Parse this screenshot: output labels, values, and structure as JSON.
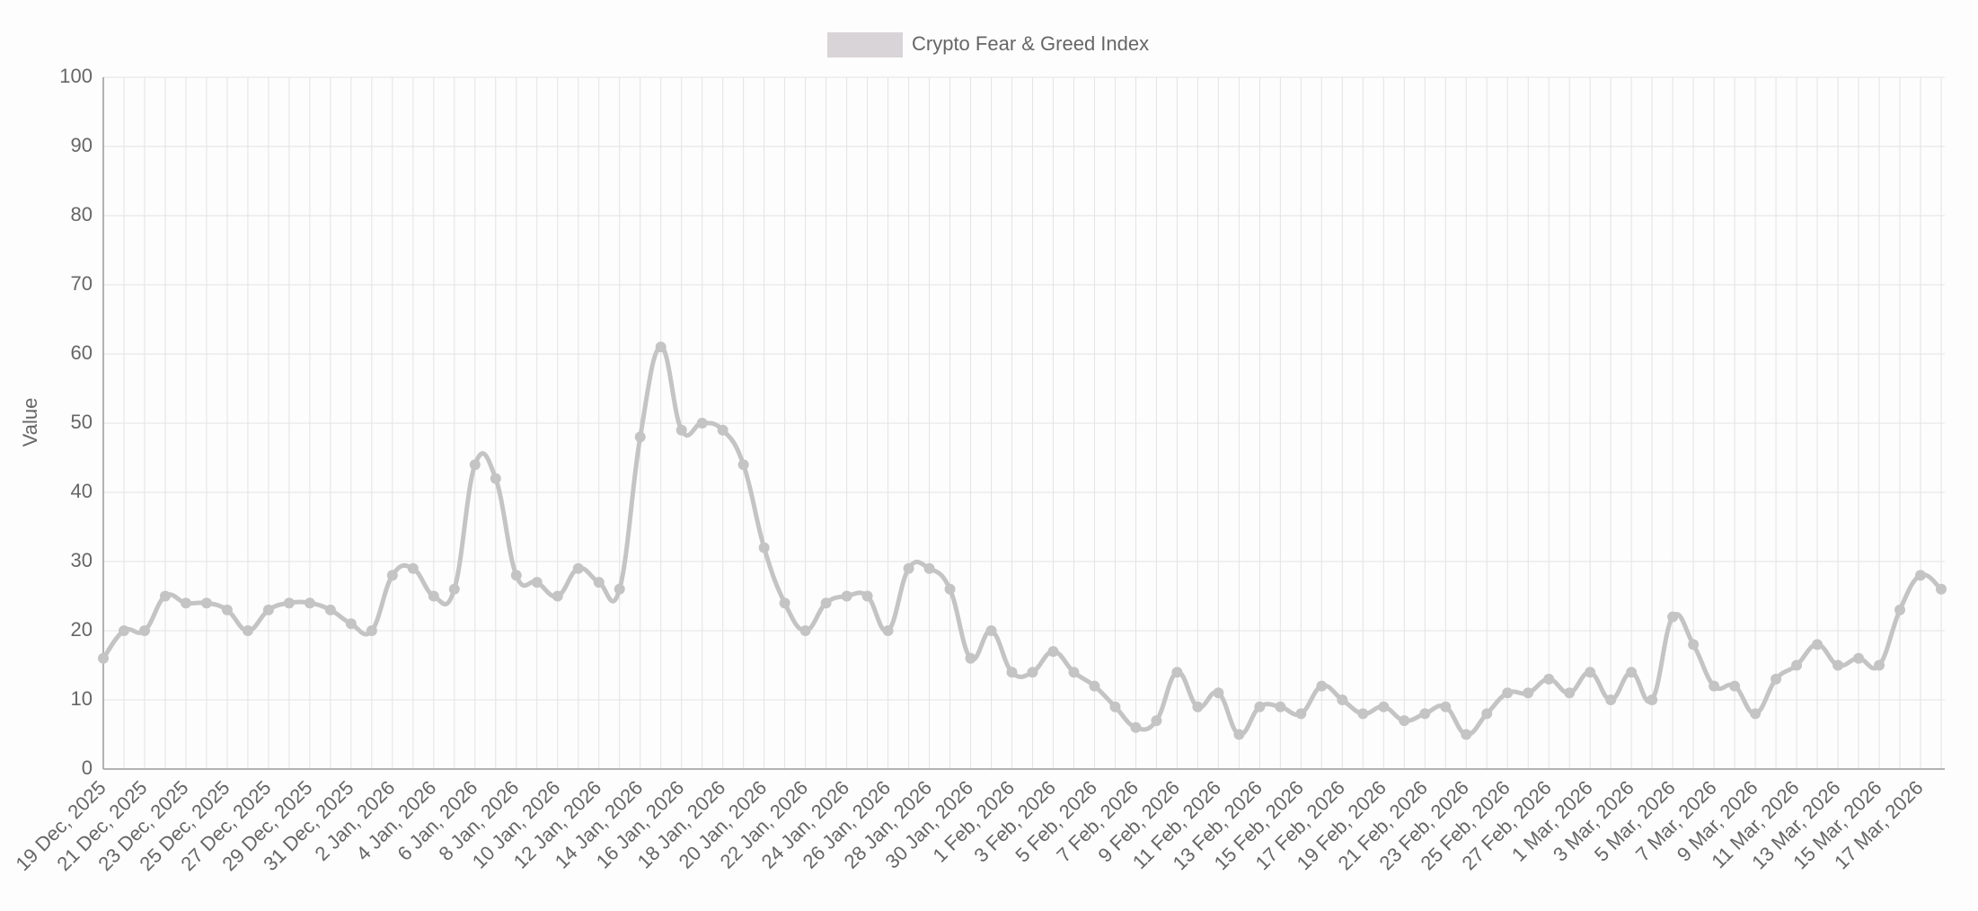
{
  "chart_data": {
    "type": "line",
    "ylabel": "Value",
    "categories": [
      "19 Dec, 2025",
      null,
      "21 Dec, 2025",
      null,
      "23 Dec, 2025",
      null,
      "25 Dec, 2025",
      null,
      "27 Dec, 2025",
      null,
      "29 Dec, 2025",
      null,
      "31 Dec, 2025",
      null,
      "2 Jan, 2026",
      null,
      "4 Jan, 2026",
      null,
      "6 Jan, 2026",
      null,
      "8 Jan, 2026",
      null,
      "10 Jan, 2026",
      null,
      "12 Jan, 2026",
      null,
      "14 Jan, 2026",
      null,
      "16 Jan, 2026",
      null,
      "18 Jan, 2026",
      null,
      "20 Jan, 2026",
      null,
      "22 Jan, 2026",
      null,
      "24 Jan, 2026",
      null,
      "26 Jan, 2026",
      null,
      "28 Jan, 2026",
      null,
      "30 Jan, 2026",
      null,
      "1 Feb, 2026",
      null,
      "3 Feb, 2026",
      null,
      "5 Feb, 2026",
      null,
      "7 Feb, 2026",
      null,
      "9 Feb, 2026",
      null,
      "11 Feb, 2026",
      null,
      "13 Feb, 2026",
      null,
      "15 Feb, 2026",
      null,
      "17 Feb, 2026",
      null,
      "19 Feb, 2026",
      null,
      "21 Feb, 2026",
      null,
      "23 Feb, 2026",
      null,
      "25 Feb, 2026",
      null,
      "27 Feb, 2026",
      null,
      "1 Mar, 2026",
      null,
      "3 Mar, 2026",
      null,
      "5 Mar, 2026",
      null,
      "7 Mar, 2026",
      null,
      "9 Mar, 2026",
      null,
      "11 Mar, 2026",
      null,
      "13 Mar, 2026",
      null,
      "15 Mar, 2026",
      null,
      "17 Mar, 2026",
      null
    ],
    "series": [
      {
        "name": "Crypto Fear & Greed Index",
        "color": "#c4c4c4",
        "legend_color": "#d9d4d8",
        "values": [
          16,
          20,
          20,
          25,
          24,
          24,
          23,
          20,
          23,
          24,
          24,
          23,
          21,
          20,
          28,
          29,
          25,
          26,
          44,
          42,
          28,
          27,
          25,
          29,
          27,
          26,
          48,
          61,
          49,
          50,
          49,
          44,
          32,
          24,
          20,
          24,
          25,
          25,
          20,
          29,
          29,
          26,
          16,
          20,
          14,
          14,
          17,
          14,
          12,
          9,
          6,
          7,
          14,
          9,
          11,
          5,
          9,
          9,
          8,
          12,
          10,
          8,
          9,
          7,
          8,
          9,
          5,
          8,
          11,
          11,
          13,
          11,
          14,
          10,
          14,
          10,
          22,
          18,
          12,
          12,
          8,
          13,
          15,
          18,
          15,
          16,
          15,
          23,
          28,
          26
        ]
      }
    ],
    "ylim": [
      0,
      100
    ],
    "yticks": [
      0,
      10,
      20,
      30,
      40,
      50,
      60,
      70,
      80,
      90,
      100
    ],
    "grid": true
  }
}
